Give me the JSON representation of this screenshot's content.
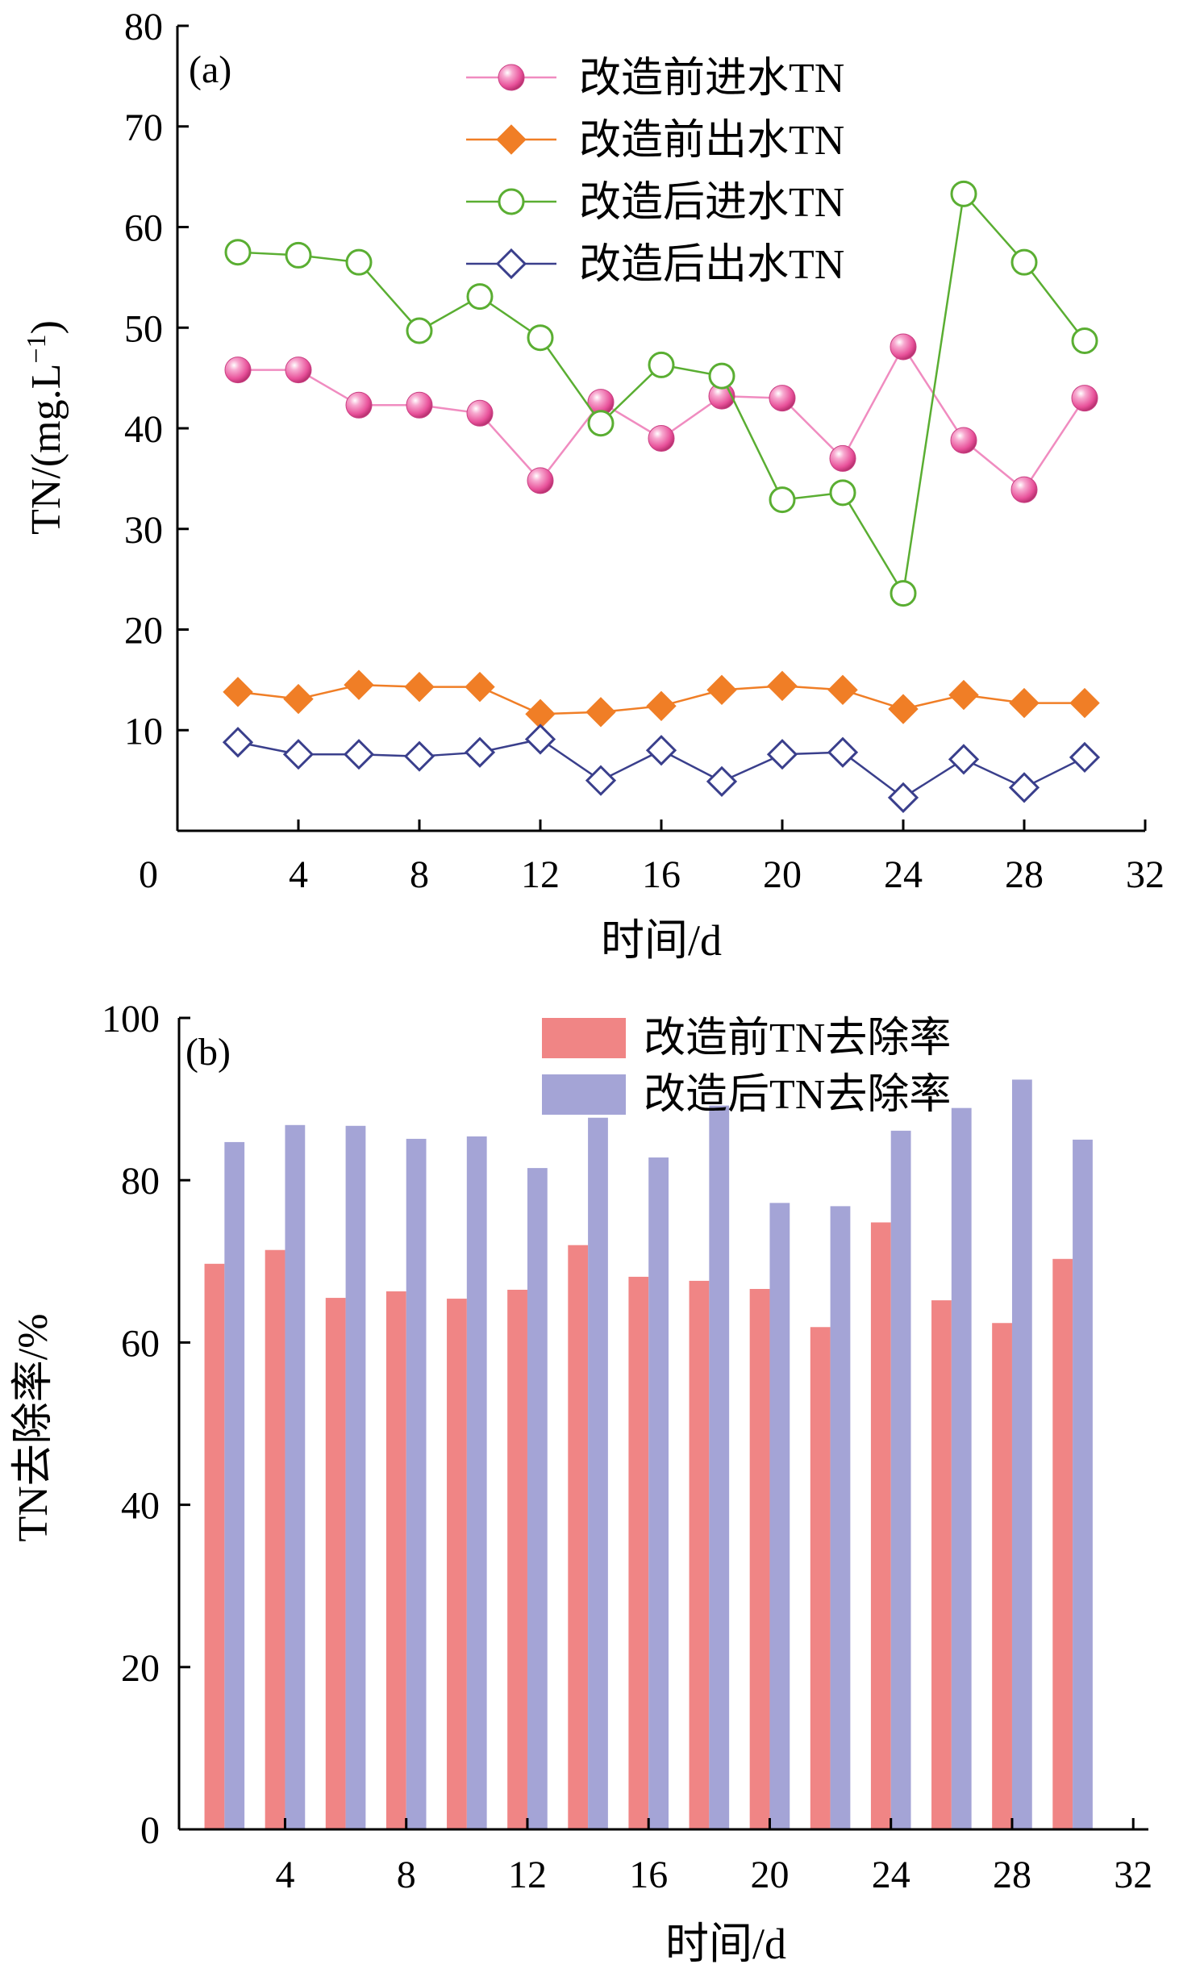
{
  "chart_data": [
    {
      "type": "line",
      "panel_label": "(a)",
      "title": "",
      "xlabel": "时间/d",
      "ylabel_main": "TN/(mg.L",
      "ylabel_sup": "−1",
      "ylabel_close": ")",
      "xlim": [
        0,
        32
      ],
      "ylim": [
        0,
        80
      ],
      "xticks": [
        0,
        4,
        8,
        12,
        16,
        20,
        24,
        28,
        32
      ],
      "yticks": [
        10,
        20,
        30,
        40,
        50,
        60,
        70,
        80
      ],
      "grid": false,
      "legend_position": "top-right",
      "x": [
        2,
        4,
        6,
        8,
        10,
        12,
        14,
        16,
        18,
        20,
        22,
        24,
        26,
        28,
        30
      ],
      "series": [
        {
          "name": "改造前进水TN",
          "marker": "filled-circle",
          "color": "#e8519a",
          "line_color": "#f08cc0",
          "values": [
            45.8,
            45.8,
            42.3,
            42.3,
            41.5,
            34.8,
            42.6,
            39.0,
            43.2,
            43.0,
            37.0,
            48.1,
            38.8,
            33.9,
            43.0
          ]
        },
        {
          "name": "改造前出水TN",
          "marker": "filled-diamond",
          "color": "#f07e26",
          "line_color": "#f07e26",
          "values": [
            13.8,
            13.1,
            14.5,
            14.3,
            14.3,
            11.6,
            11.8,
            12.4,
            14.0,
            14.4,
            14.0,
            12.1,
            13.5,
            12.7,
            12.7
          ]
        },
        {
          "name": "改造后进水TN",
          "marker": "open-circle",
          "color": "#5aae32",
          "line_color": "#5aae32",
          "values": [
            57.5,
            57.2,
            56.5,
            49.7,
            53.1,
            49.0,
            40.5,
            46.3,
            45.2,
            32.9,
            33.6,
            23.6,
            63.3,
            56.5,
            48.7
          ]
        },
        {
          "name": "改造后出水TN",
          "marker": "open-diamond",
          "color": "#3a3f8c",
          "line_color": "#3a3f8c",
          "values": [
            8.8,
            7.6,
            7.6,
            7.4,
            7.8,
            9.1,
            5.0,
            8.0,
            4.9,
            7.6,
            7.8,
            3.3,
            7.1,
            4.3,
            7.3
          ]
        }
      ]
    },
    {
      "type": "bar",
      "panel_label": "(b)",
      "title": "",
      "xlabel": "时间/d",
      "ylabel": "TN去除率/%",
      "xlim": [
        0,
        32
      ],
      "ylim": [
        0,
        100
      ],
      "xticks": [
        4,
        8,
        12,
        16,
        20,
        24,
        28,
        32
      ],
      "yticks": [
        0,
        20,
        40,
        60,
        80,
        100
      ],
      "grid": false,
      "legend_position": "top-right",
      "x": [
        2,
        4,
        6,
        8,
        10,
        12,
        14,
        16,
        18,
        20,
        22,
        24,
        26,
        28,
        30
      ],
      "series": [
        {
          "name": "改造前TN去除率",
          "color": "#f08585",
          "values": [
            69.7,
            71.4,
            65.5,
            66.3,
            65.4,
            66.5,
            72.0,
            68.1,
            67.6,
            66.6,
            61.9,
            74.8,
            65.2,
            62.4,
            70.3
          ]
        },
        {
          "name": "改造后TN去除率",
          "color": "#a4a4d6",
          "values": [
            84.7,
            86.8,
            86.7,
            85.1,
            85.4,
            81.5,
            87.7,
            82.8,
            89.2,
            77.2,
            76.8,
            86.1,
            88.9,
            92.4,
            85.0
          ]
        }
      ]
    }
  ]
}
